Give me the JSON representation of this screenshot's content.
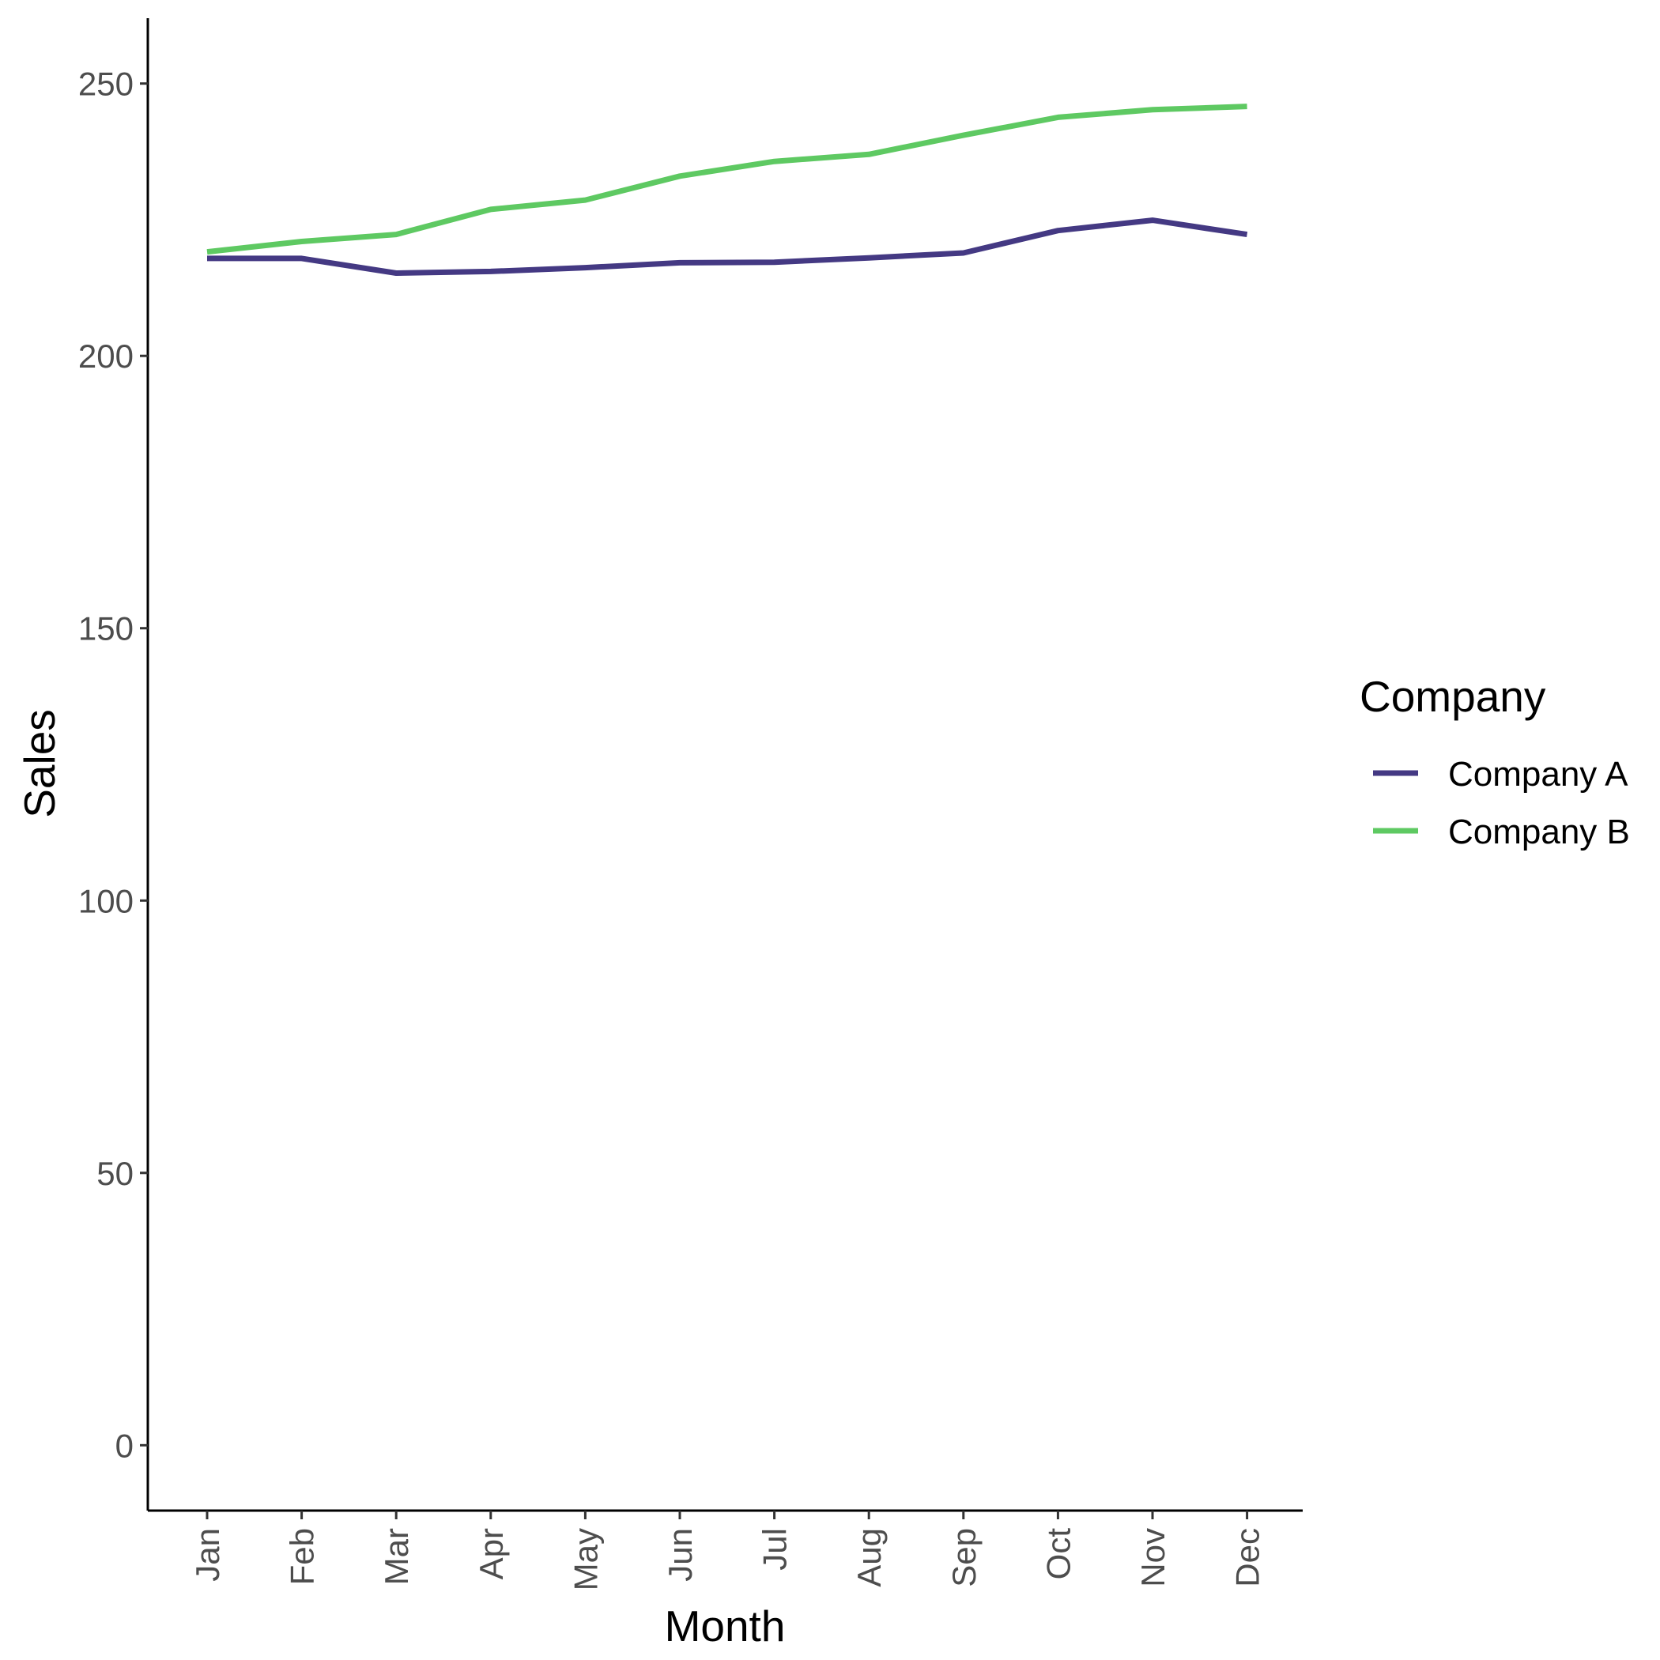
{
  "chart_data": {
    "type": "line",
    "title": "",
    "xlabel": "Month",
    "ylabel": "Sales",
    "categories": [
      "Jan",
      "Feb",
      "Mar",
      "Apr",
      "May",
      "Jun",
      "Jul",
      "Aug",
      "Sep",
      "Oct",
      "Nov",
      "Dec"
    ],
    "yticks": [
      "0",
      "50",
      "100",
      "150",
      "200",
      "250"
    ],
    "ylim": [
      -12,
      262
    ],
    "grid": false,
    "legend": {
      "title": "Company",
      "placement": "right"
    },
    "series": [
      {
        "name": "Company A",
        "color": "#443983",
        "values": [
          217.9,
          217.9,
          215.2,
          215.5,
          216.2,
          217.1,
          217.2,
          218.0,
          218.9,
          223.0,
          224.9,
          222.3
        ]
      },
      {
        "name": "Company B",
        "color": "#5ec962",
        "values": [
          219.1,
          221.0,
          222.3,
          226.9,
          228.6,
          233.0,
          235.7,
          237.0,
          240.5,
          243.8,
          245.2,
          245.8
        ]
      }
    ]
  }
}
